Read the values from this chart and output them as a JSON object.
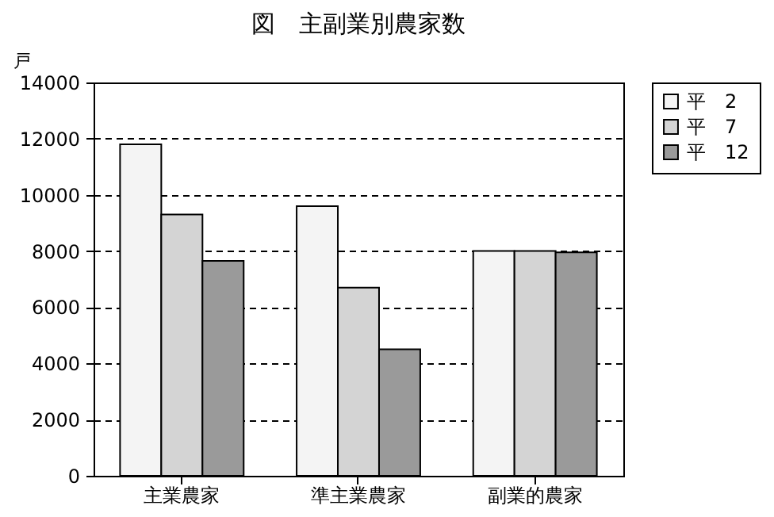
{
  "chart_data": {
    "type": "bar",
    "title": "図　主副業別農家数",
    "ylabel": "戸",
    "categories": [
      "主業農家",
      "準主業農家",
      "副業的農家"
    ],
    "series": [
      {
        "name": "平　2",
        "color": "#f4f4f4",
        "values": [
          11800,
          9600,
          8000
        ]
      },
      {
        "name": "平　7",
        "color": "#d4d4d4",
        "values": [
          9300,
          6700,
          8000
        ]
      },
      {
        "name": "平　12",
        "color": "#9a9a9a",
        "values": [
          7650,
          4500,
          7950
        ]
      }
    ],
    "ylim": [
      0,
      14000
    ],
    "yticks": [
      0,
      2000,
      4000,
      6000,
      8000,
      10000,
      12000,
      14000
    ],
    "grid": "y",
    "legend": "right"
  }
}
